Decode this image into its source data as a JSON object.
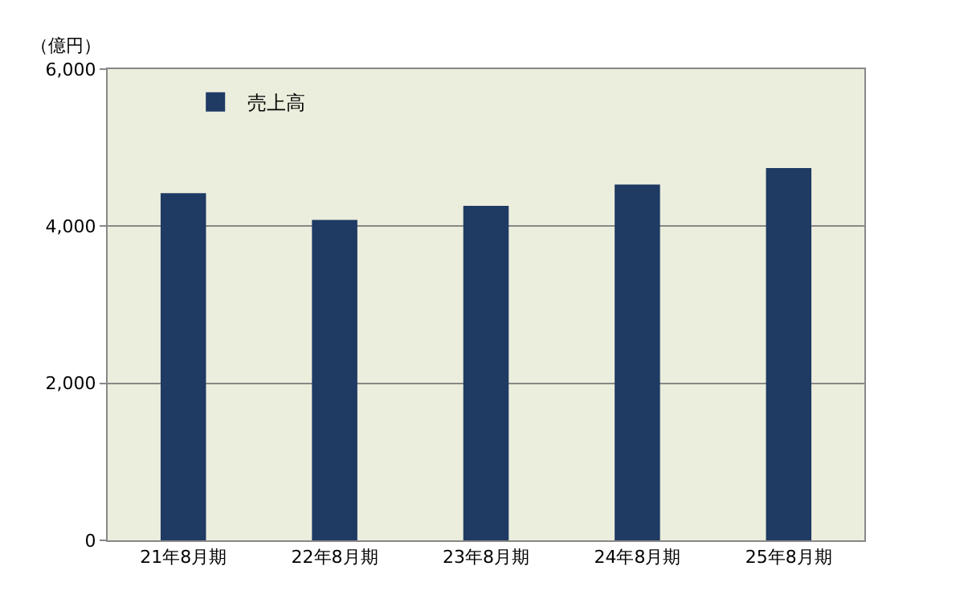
{
  "chart_data": {
    "type": "bar",
    "ylabel": "（億円）",
    "categories": [
      "21年8月期",
      "22年8月期",
      "23年8月期",
      "24年8月期",
      "25年8月期"
    ],
    "series": [
      {
        "name": "売上高",
        "color": "#1f3a63",
        "values": [
          4420,
          4080,
          4260,
          4530,
          4740
        ]
      }
    ],
    "ylim": [
      0,
      6000
    ],
    "yticks": [
      {
        "value": 0,
        "label": "0"
      },
      {
        "value": 2000,
        "label": "2,000"
      },
      {
        "value": 4000,
        "label": "4,000"
      },
      {
        "value": 6000,
        "label": "6,000"
      }
    ],
    "grid": "y",
    "legend": "top left"
  }
}
